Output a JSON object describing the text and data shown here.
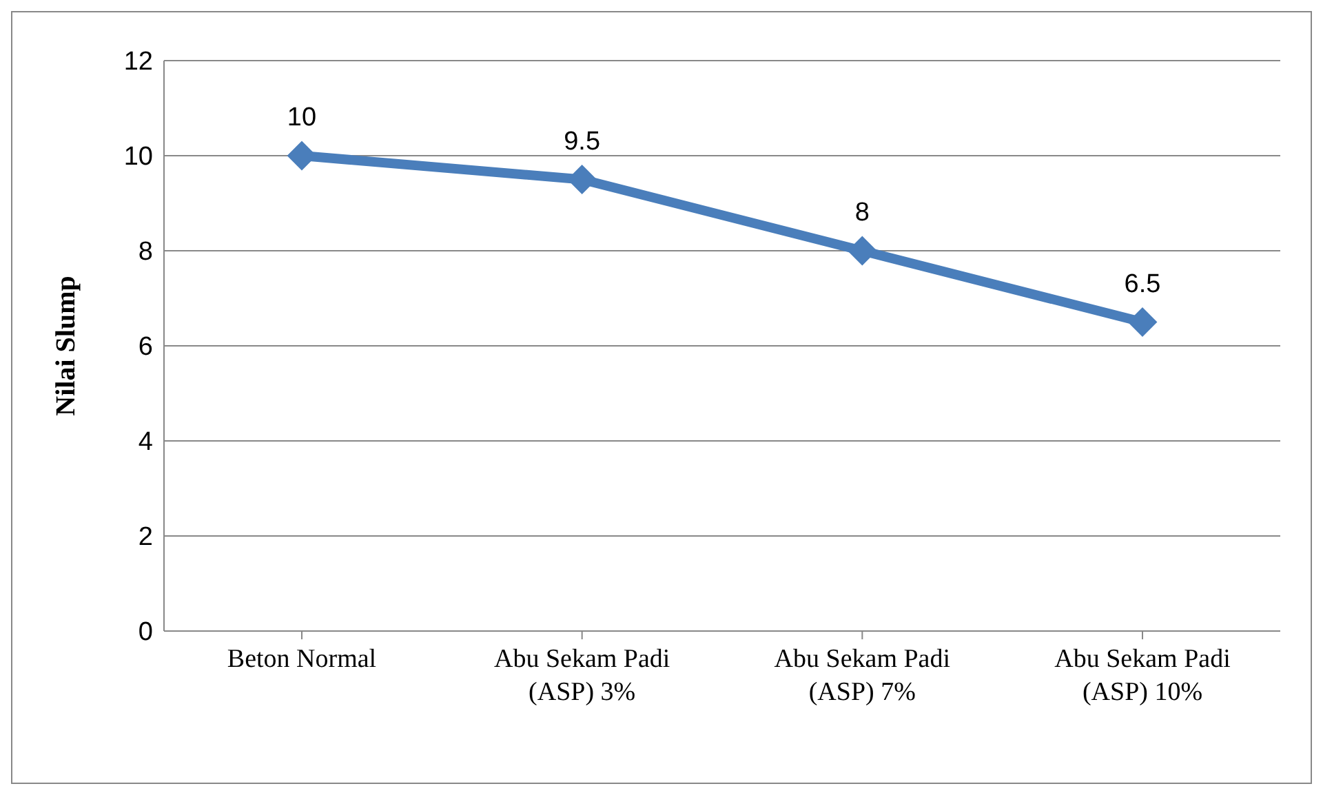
{
  "chart_data": {
    "type": "line",
    "ylabel": "Nilai Slump",
    "categories": [
      "Beton Normal",
      "Abu Sekam Padi (ASP) 3%",
      "Abu Sekam Padi (ASP) 7%",
      "Abu Sekam Padi (ASP) 10%"
    ],
    "series": [
      {
        "color": "#4a7ebb",
        "values": [
          10,
          9.5,
          8,
          6.5
        ]
      }
    ],
    "ylim": [
      0,
      12
    ],
    "yticks": [
      0,
      2,
      4,
      6,
      8,
      10,
      12
    ],
    "grid": "y",
    "marker": "diamond",
    "line_style": "solid",
    "data_labels": true,
    "legend": false
  }
}
